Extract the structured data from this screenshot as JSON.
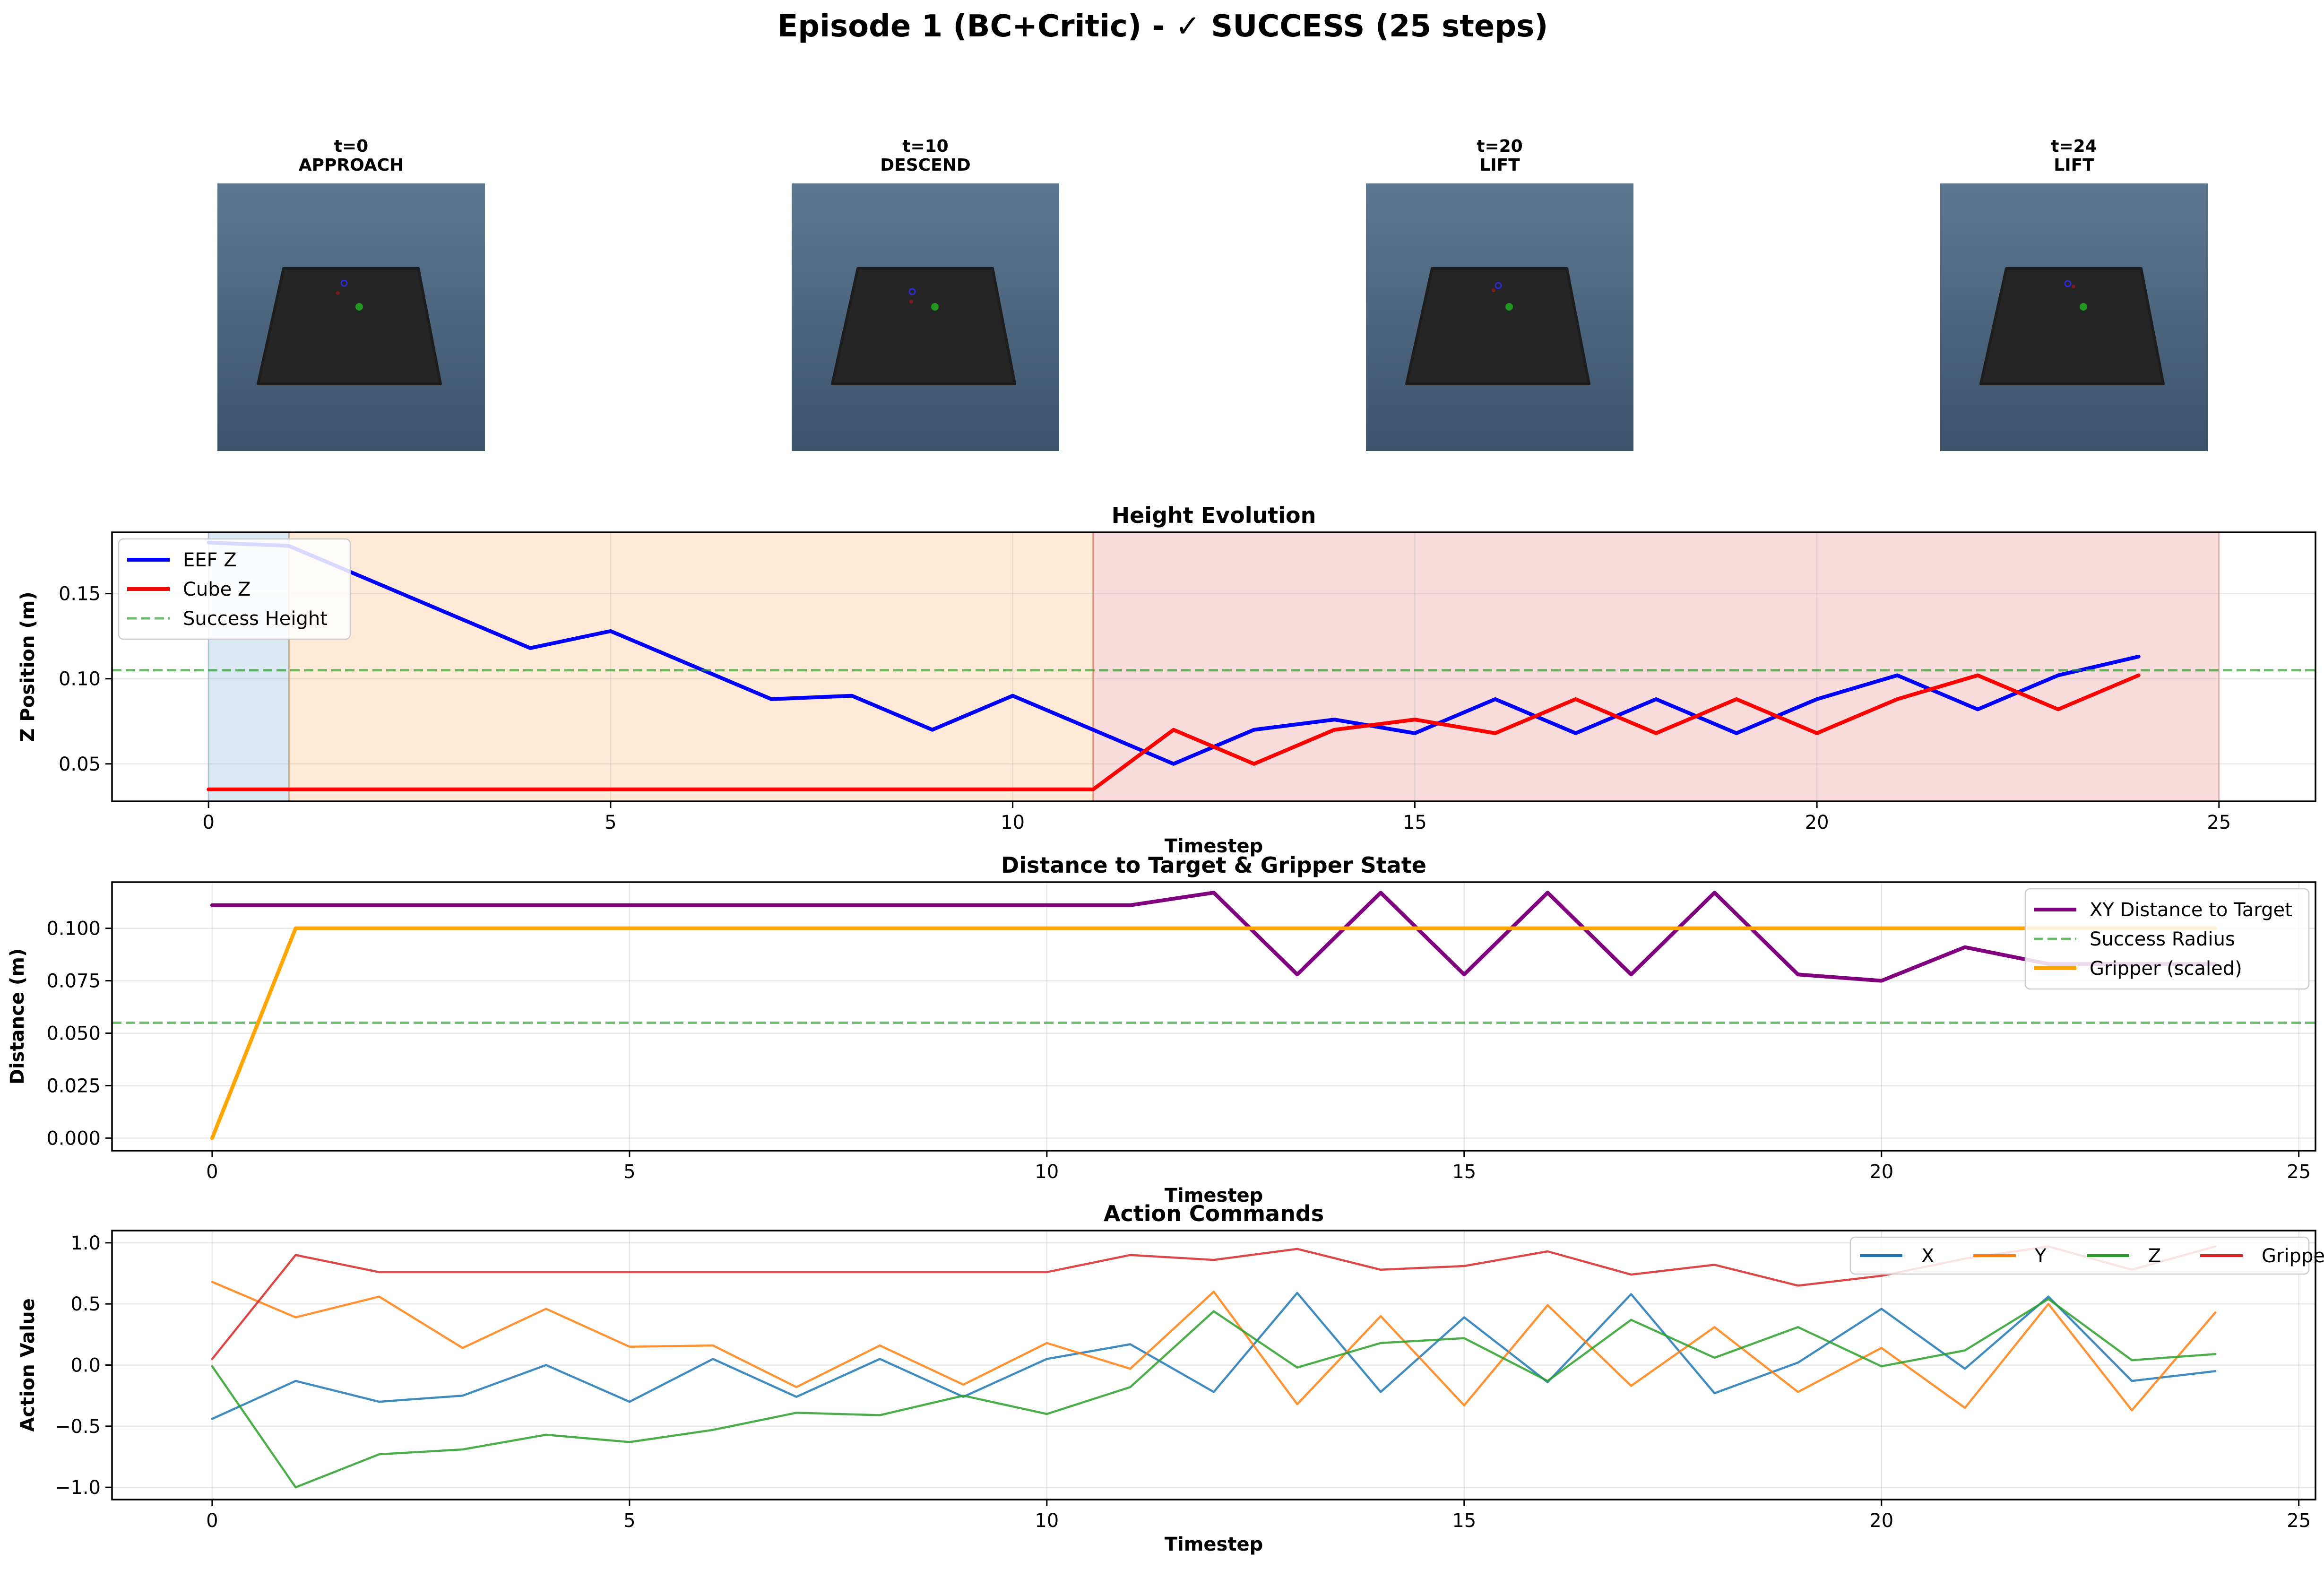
{
  "figure": {
    "title": "Episode 1 (BC+Critic) - ✓ SUCCESS (25 steps)"
  },
  "frames": [
    {
      "time_label": "t=0",
      "phase_label": "APPROACH"
    },
    {
      "time_label": "t=10",
      "phase_label": "DESCEND"
    },
    {
      "time_label": "t=20",
      "phase_label": "LIFT"
    },
    {
      "time_label": "t=24",
      "phase_label": "LIFT"
    }
  ],
  "chart_data": [
    {
      "type": "line",
      "title": "Height Evolution",
      "xlabel": "Timestep",
      "ylabel": "Z Position (m)",
      "xlim": [
        -1.2,
        26.2
      ],
      "ylim": [
        0.028,
        0.186
      ],
      "xticks": [
        0,
        5,
        10,
        15,
        20,
        25
      ],
      "yticks": [
        0.05,
        0.1,
        0.15
      ],
      "ytick_labels": [
        "0.05",
        "0.10",
        "0.15"
      ],
      "grid": true,
      "legend_position": "top-left",
      "phase_bands": [
        {
          "from": 0,
          "to": 1,
          "color": "#1f77b4"
        },
        {
          "from": 1,
          "to": 11,
          "color": "#ff7f0e"
        },
        {
          "from": 11,
          "to": 25,
          "color": "#d62728"
        }
      ],
      "series": [
        {
          "name": "EEF Z",
          "color": "#0000ff",
          "style": "solid",
          "x": [
            0,
            1,
            2,
            3,
            4,
            5,
            6,
            7,
            8,
            9,
            10,
            11,
            12,
            13,
            14,
            15,
            16,
            17,
            18,
            19,
            20,
            21,
            22,
            23,
            24
          ],
          "y": [
            0.18,
            0.178,
            0.158,
            0.138,
            0.118,
            0.128,
            0.108,
            0.088,
            0.09,
            0.07,
            0.09,
            0.07,
            0.05,
            0.07,
            0.076,
            0.068,
            0.088,
            0.068,
            0.088,
            0.068,
            0.088,
            0.102,
            0.082,
            0.102,
            0.113
          ]
        },
        {
          "name": "Cube Z",
          "color": "#ff0000",
          "style": "solid",
          "x": [
            0,
            1,
            2,
            3,
            4,
            5,
            6,
            7,
            8,
            9,
            10,
            11,
            12,
            13,
            14,
            15,
            16,
            17,
            18,
            19,
            20,
            21,
            22,
            23,
            24
          ],
          "y": [
            0.035,
            0.035,
            0.035,
            0.035,
            0.035,
            0.035,
            0.035,
            0.035,
            0.035,
            0.035,
            0.035,
            0.035,
            0.07,
            0.05,
            0.07,
            0.076,
            0.068,
            0.088,
            0.068,
            0.088,
            0.068,
            0.088,
            0.102,
            0.082,
            0.102
          ]
        },
        {
          "name": "Success Height",
          "color": "#2ca02c",
          "style": "dashed",
          "hline": 0.105
        }
      ]
    },
    {
      "type": "line",
      "title": "Distance to Target & Gripper State",
      "xlabel": "Timestep",
      "ylabel": "Distance (m)",
      "xlim": [
        -1.2,
        25.2
      ],
      "ylim": [
        -0.006,
        0.122
      ],
      "xticks": [
        0,
        5,
        10,
        15,
        20,
        25
      ],
      "yticks": [
        0.0,
        0.025,
        0.05,
        0.075,
        0.1
      ],
      "ytick_labels": [
        "0.000",
        "0.025",
        "0.050",
        "0.075",
        "0.100"
      ],
      "grid": true,
      "legend_position": "top-right",
      "series": [
        {
          "name": "XY Distance to Target",
          "color": "#800080",
          "style": "solid",
          "x": [
            0,
            1,
            2,
            3,
            4,
            5,
            6,
            7,
            8,
            9,
            10,
            11,
            12,
            13,
            14,
            15,
            16,
            17,
            18,
            19,
            20,
            21,
            22,
            23,
            24
          ],
          "y": [
            0.111,
            0.111,
            0.111,
            0.111,
            0.111,
            0.111,
            0.111,
            0.111,
            0.111,
            0.111,
            0.111,
            0.111,
            0.117,
            0.078,
            0.117,
            0.078,
            0.117,
            0.078,
            0.117,
            0.078,
            0.075,
            0.091,
            0.083,
            0.083,
            0.083
          ]
        },
        {
          "name": "Success Radius",
          "color": "#2ca02c",
          "style": "dashed",
          "hline": 0.055
        },
        {
          "name": "Gripper (scaled)",
          "color": "#ffa500",
          "style": "solid",
          "x": [
            0,
            1,
            2,
            3,
            4,
            5,
            6,
            7,
            8,
            9,
            10,
            11,
            12,
            13,
            14,
            15,
            16,
            17,
            18,
            19,
            20,
            21,
            22,
            23,
            24
          ],
          "y": [
            0.0,
            0.1,
            0.1,
            0.1,
            0.1,
            0.1,
            0.1,
            0.1,
            0.1,
            0.1,
            0.1,
            0.1,
            0.1,
            0.1,
            0.1,
            0.1,
            0.1,
            0.1,
            0.1,
            0.1,
            0.1,
            0.1,
            0.1,
            0.1,
            0.1
          ]
        }
      ]
    },
    {
      "type": "line",
      "title": "Action Commands",
      "xlabel": "Timestep",
      "ylabel": "Action Value",
      "xlim": [
        -1.2,
        25.2
      ],
      "ylim": [
        -1.1,
        1.1
      ],
      "xticks": [
        0,
        5,
        10,
        15,
        20,
        25
      ],
      "yticks": [
        -1.0,
        -0.5,
        0.0,
        0.5,
        1.0
      ],
      "ytick_labels": [
        "−1.0",
        "−0.5",
        "0.0",
        "0.5",
        "1.0"
      ],
      "grid": true,
      "legend_position": "top-right",
      "series": [
        {
          "name": "X",
          "color": "#1f77b4",
          "style": "solid",
          "x": [
            0,
            1,
            2,
            3,
            4,
            5,
            6,
            7,
            8,
            9,
            10,
            11,
            12,
            13,
            14,
            15,
            16,
            17,
            18,
            19,
            20,
            21,
            22,
            23,
            24
          ],
          "y": [
            -0.44,
            -0.13,
            -0.3,
            -0.25,
            0.0,
            -0.3,
            0.05,
            -0.26,
            0.05,
            -0.26,
            0.05,
            0.17,
            -0.22,
            0.59,
            -0.22,
            0.39,
            -0.14,
            0.58,
            -0.23,
            0.02,
            0.46,
            -0.03,
            0.56,
            -0.13,
            -0.05
          ]
        },
        {
          "name": "Y",
          "color": "#ff7f0e",
          "style": "solid",
          "x": [
            0,
            1,
            2,
            3,
            4,
            5,
            6,
            7,
            8,
            9,
            10,
            11,
            12,
            13,
            14,
            15,
            16,
            17,
            18,
            19,
            20,
            21,
            22,
            23,
            24
          ],
          "y": [
            0.68,
            0.39,
            0.56,
            0.14,
            0.46,
            0.15,
            0.16,
            -0.18,
            0.16,
            -0.16,
            0.18,
            -0.03,
            0.6,
            -0.32,
            0.4,
            -0.33,
            0.49,
            -0.17,
            0.31,
            -0.22,
            0.14,
            -0.35,
            0.5,
            -0.37,
            0.43
          ]
        },
        {
          "name": "Z",
          "color": "#2ca02c",
          "style": "solid",
          "x": [
            0,
            1,
            2,
            3,
            4,
            5,
            6,
            7,
            8,
            9,
            10,
            11,
            12,
            13,
            14,
            15,
            16,
            17,
            18,
            19,
            20,
            21,
            22,
            23,
            24
          ],
          "y": [
            -0.01,
            -1.0,
            -0.73,
            -0.69,
            -0.57,
            -0.63,
            -0.53,
            -0.39,
            -0.41,
            -0.25,
            -0.4,
            -0.18,
            0.44,
            -0.02,
            0.18,
            0.22,
            -0.13,
            0.37,
            0.06,
            0.31,
            -0.01,
            0.12,
            0.54,
            0.04,
            0.09
          ]
        },
        {
          "name": "Gripper",
          "color": "#d62728",
          "style": "solid",
          "x": [
            0,
            1,
            2,
            3,
            4,
            5,
            6,
            7,
            8,
            9,
            10,
            11,
            12,
            13,
            14,
            15,
            16,
            17,
            18,
            19,
            20,
            21,
            22,
            23,
            24
          ],
          "y": [
            0.05,
            0.9,
            0.76,
            0.76,
            0.76,
            0.76,
            0.76,
            0.76,
            0.76,
            0.76,
            0.76,
            0.9,
            0.86,
            0.95,
            0.78,
            0.81,
            0.93,
            0.74,
            0.82,
            0.65,
            0.73,
            0.87,
            0.97,
            0.78,
            0.97
          ]
        }
      ]
    }
  ]
}
